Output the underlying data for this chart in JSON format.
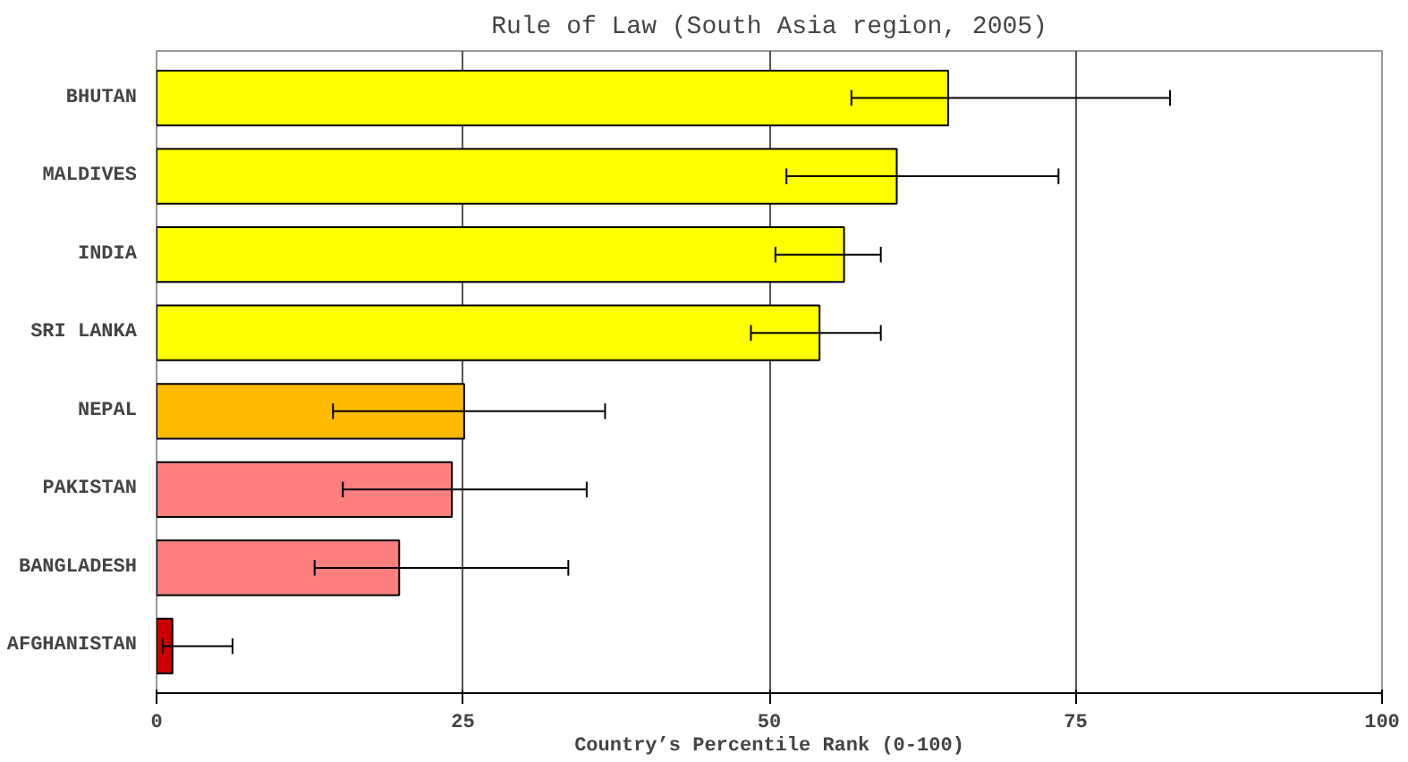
{
  "chart_data": {
    "type": "bar",
    "orientation": "horizontal",
    "title": "Rule of Law (South Asia region, 2005)",
    "xlabel": "Country’s Percentile Rank (0-100)",
    "categories": [
      "BHUTAN",
      "MALDIVES",
      "INDIA",
      "SRI LANKA",
      "NEPAL",
      "PAKISTAN",
      "BANGLADESH",
      "AFGHANISTAN"
    ],
    "values": [
      64.6,
      60.4,
      56.1,
      54.1,
      25.1,
      24.1,
      19.8,
      1.3
    ],
    "colors": [
      "#ffff00",
      "#ffff00",
      "#ffff00",
      "#ffff00",
      "#ffbb00",
      "#ff7f7f",
      "#ff7f7f",
      "#cc0000"
    ],
    "errors": [
      [
        56.7,
        82.7
      ],
      [
        51.4,
        73.6
      ],
      [
        50.5,
        59.1
      ],
      [
        48.5,
        59.1
      ],
      [
        14.4,
        36.6
      ],
      [
        15.2,
        35.1
      ],
      [
        12.9,
        33.6
      ],
      [
        0.5,
        6.2
      ]
    ],
    "xlim": [
      0,
      100
    ],
    "xticks": [
      0,
      25,
      50,
      75,
      100
    ],
    "grid": "x"
  }
}
